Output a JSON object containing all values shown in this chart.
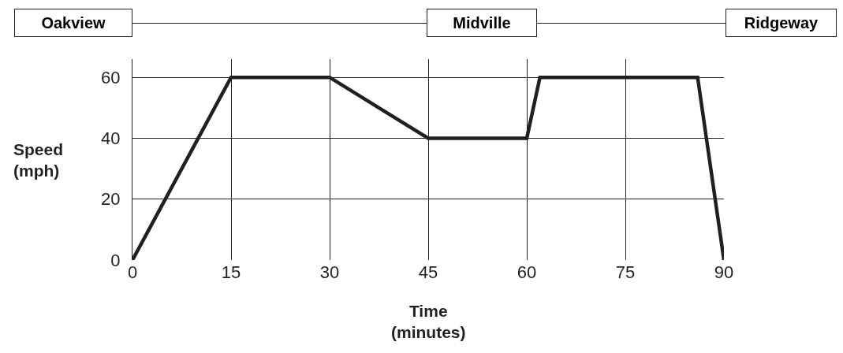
{
  "chart_data": {
    "type": "line",
    "xlabel": "Time\n(minutes)",
    "ylabel": "Speed\n(mph)",
    "annotations": [
      "Oakview",
      "Midville",
      "Ridgeway"
    ],
    "x": [
      0,
      15,
      30,
      45,
      60,
      62,
      86,
      90
    ],
    "series": [
      {
        "color": "#231f20",
        "values": [
          0,
          60,
          60,
          40,
          40,
          60,
          60,
          0
        ]
      }
    ],
    "xlim": [
      0,
      90
    ],
    "xticks": [
      0,
      15,
      30,
      45,
      60,
      75,
      90
    ],
    "ylim": [
      0,
      66
    ],
    "yticks": [
      0,
      20,
      40,
      60
    ],
    "grid": true,
    "marker": "none",
    "line_style": "solid"
  }
}
